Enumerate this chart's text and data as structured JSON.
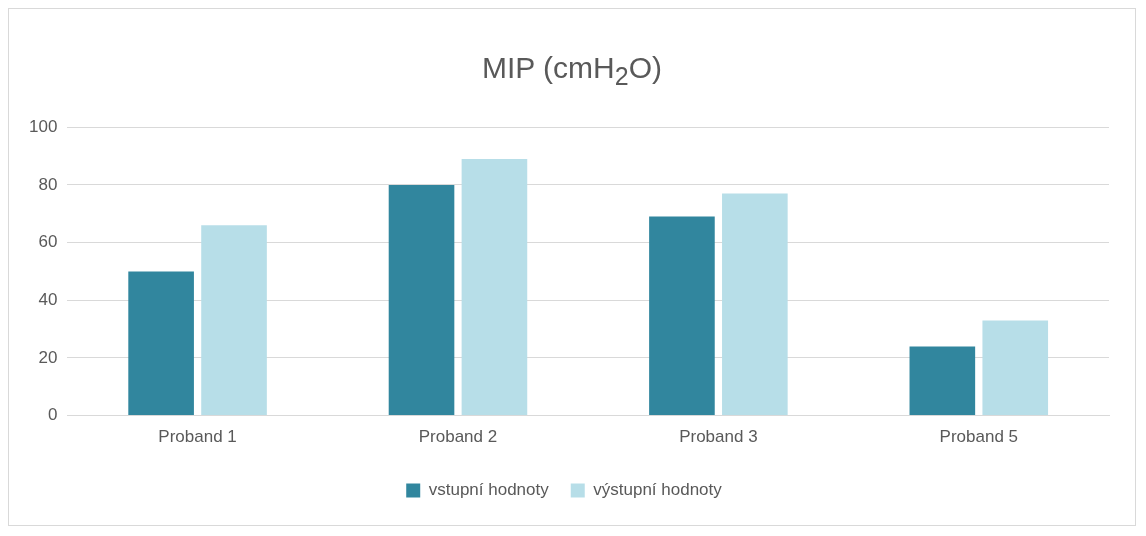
{
  "chart_data": {
    "type": "bar",
    "title": "MIP (cmH$_{2}$O)",
    "categories": [
      "Proband 1",
      "Proband 2",
      "Proband 3",
      "Proband 5"
    ],
    "series": [
      {
        "name": "vstupní hodnoty",
        "color": "#31869e",
        "values": [
          50,
          80,
          69,
          24
        ]
      },
      {
        "name": "výstupní hodnoty",
        "color": "#b7dee8",
        "values": [
          66,
          89,
          77,
          33
        ]
      }
    ],
    "ylim": [
      0,
      100
    ],
    "yticks": [
      0,
      20,
      40,
      60,
      80,
      100
    ],
    "grid": "y",
    "legend": "bottom"
  }
}
